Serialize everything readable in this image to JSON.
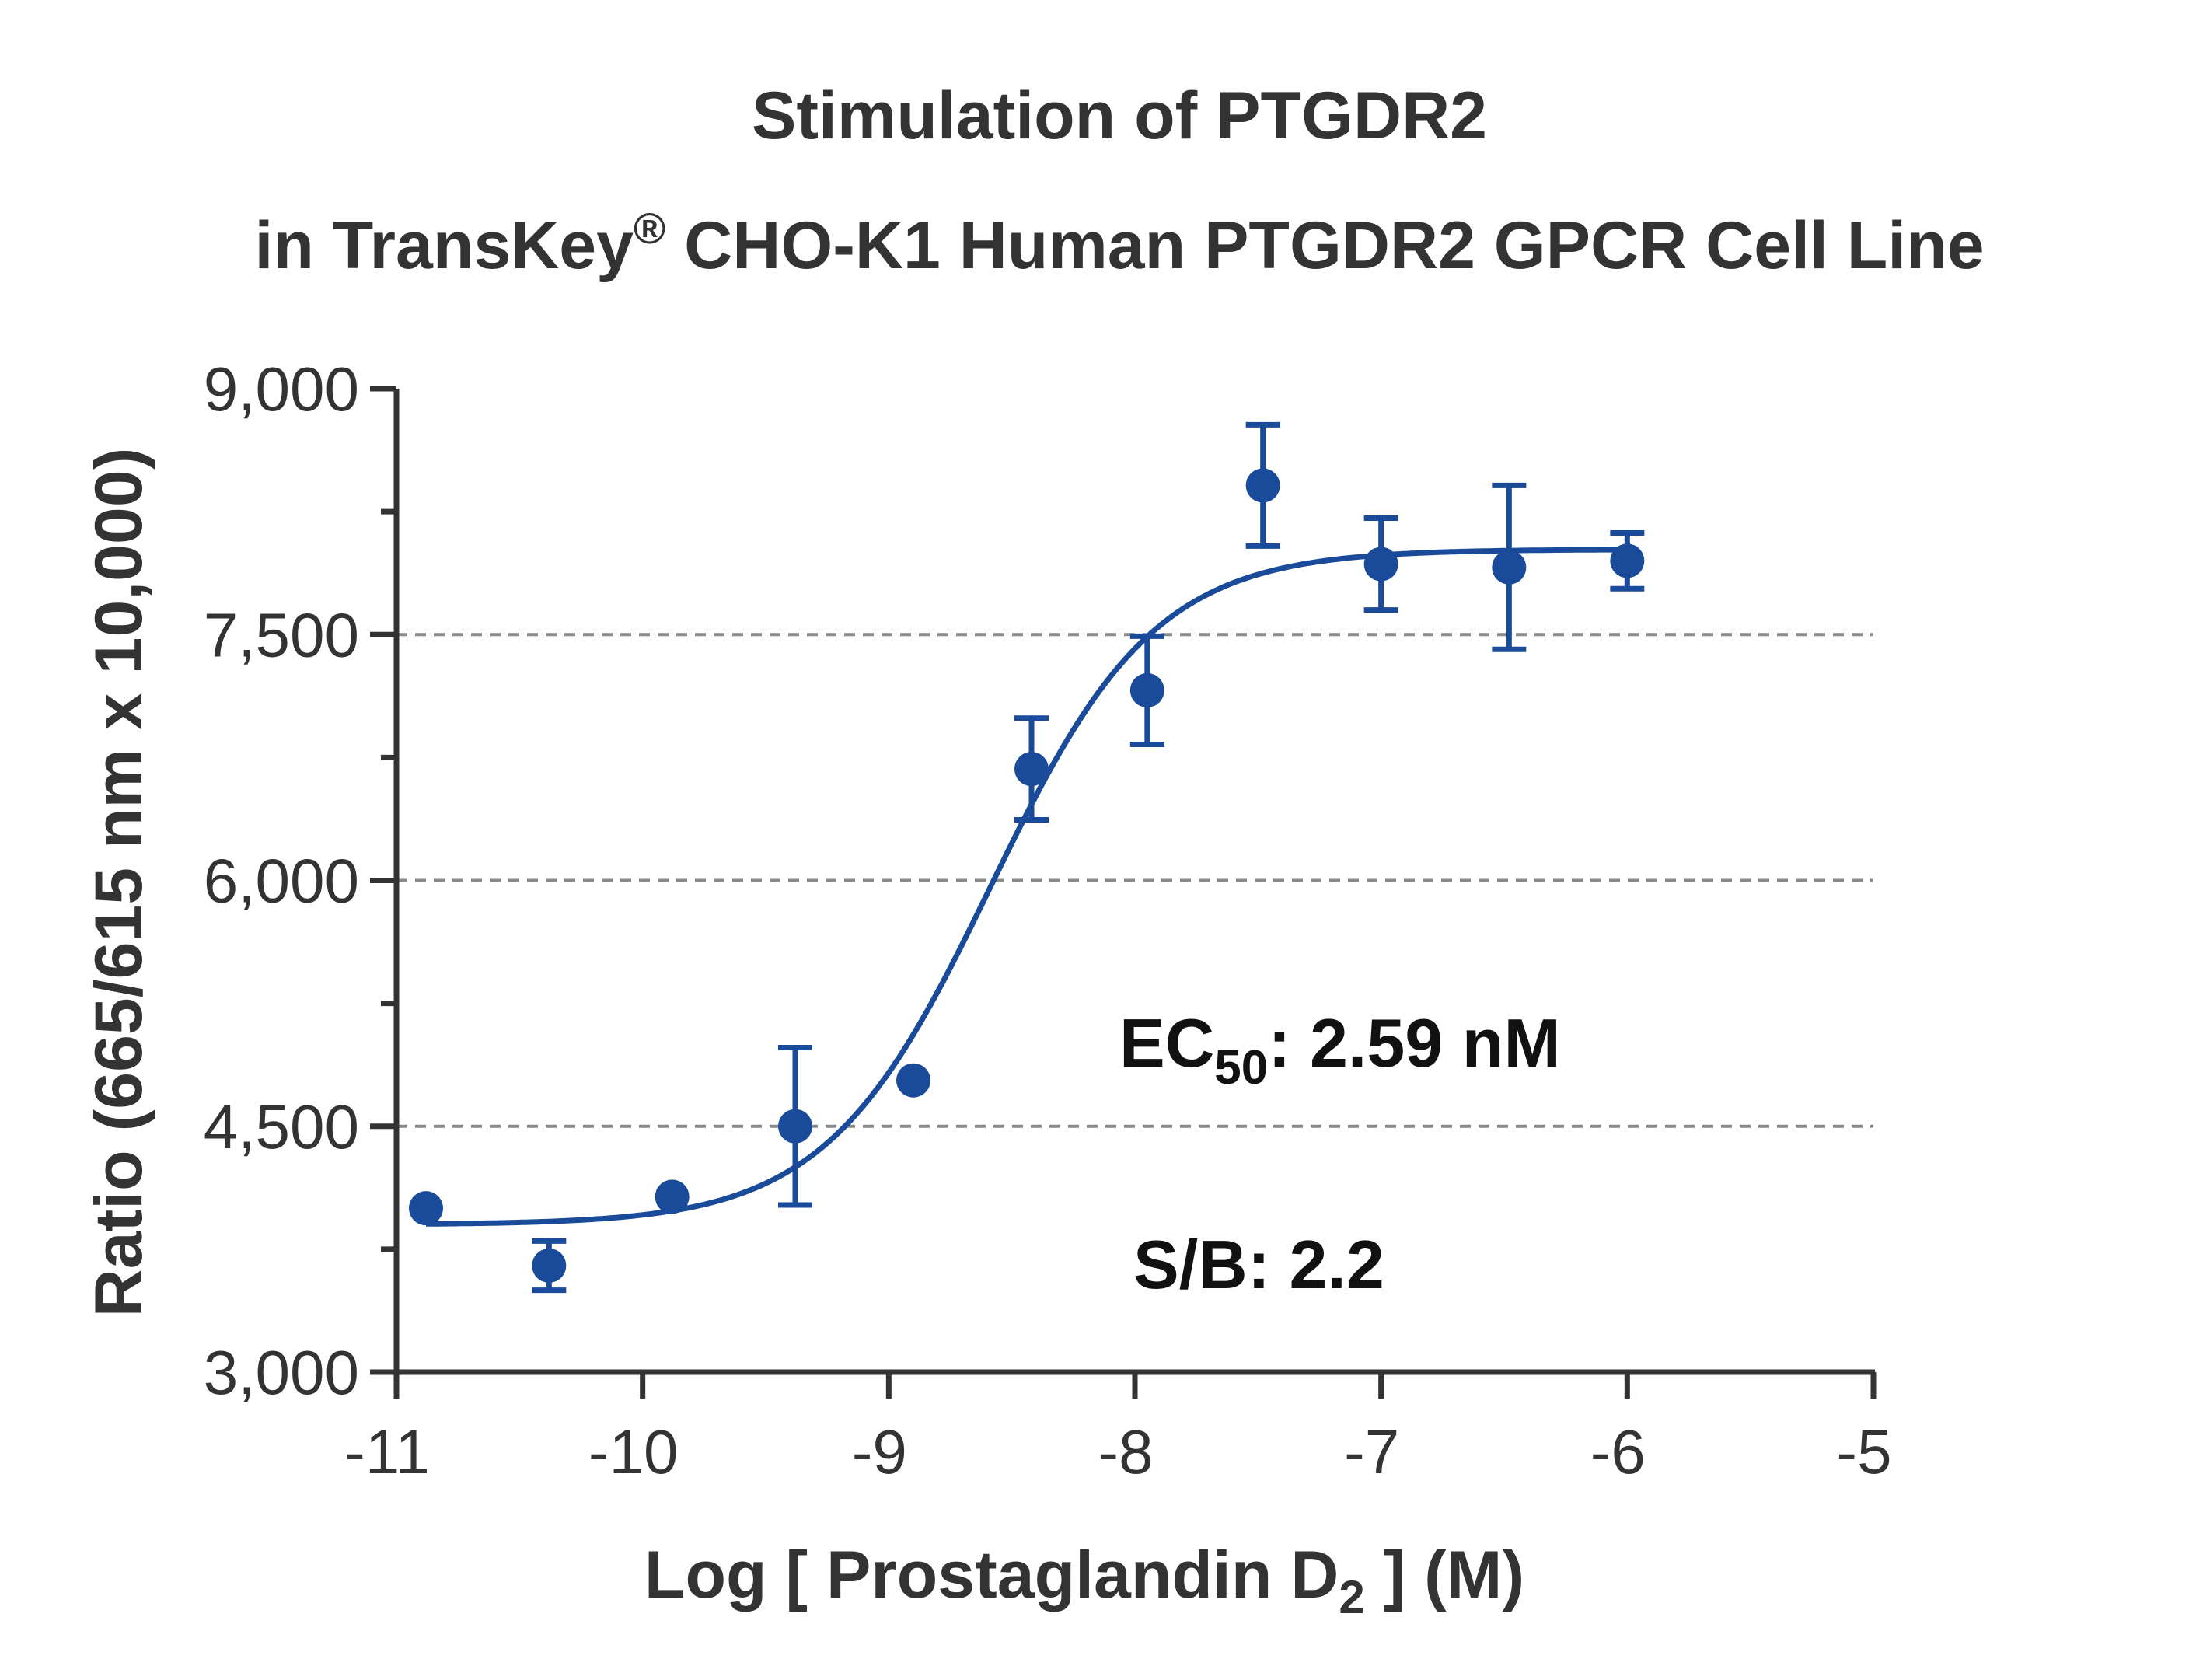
{
  "chart_data": {
    "type": "scatter",
    "title_line1": "Stimulation of  PTGDR2",
    "title_line2_pre": "in TransKey",
    "title_line2_sup": "®",
    "title_line2_post": " CHO-K1 Human PTGDR2 GPCR Cell Line",
    "xlabel_pre": "Log [ Prostaglandin D",
    "xlabel_sub": "2",
    "xlabel_post": " ]  (M)",
    "ylabel": "Ratio (665/615 nm x 10,000)",
    "xlim": [
      -11,
      -5
    ],
    "ylim": [
      3000,
      9000
    ],
    "x_ticks": [
      -11,
      -10,
      -9,
      -8,
      -7,
      -6,
      -5
    ],
    "x_tick_labels": [
      "-11",
      "-10",
      "-9",
      "-8",
      "-7",
      "-6",
      "-5"
    ],
    "y_ticks": [
      3000,
      4500,
      6000,
      7500,
      9000
    ],
    "y_tick_labels": [
      "3,000",
      "4,500",
      "6,000",
      "7,500",
      "9,000"
    ],
    "grid": "horizontal dashed at 4500, 6000, 7500",
    "color": "#1a4a9a",
    "series": [
      {
        "x": [
          -10.88,
          -10.38,
          -9.88,
          -9.38,
          -8.9,
          -8.42,
          -7.95,
          -7.48,
          -7.0,
          -6.48,
          -6.0
        ],
        "y": [
          4000,
          3650,
          4070,
          4500,
          4780,
          6680,
          7160,
          8410,
          7930,
          7910,
          7950
        ],
        "error": [
          0,
          150,
          0,
          480,
          0,
          310,
          330,
          370,
          280,
          500,
          170
        ]
      }
    ],
    "fit": {
      "type": "4PL",
      "bottom": 3900,
      "top": 8020,
      "logEC50": -8.587,
      "hill": 1.3
    },
    "annotations": {
      "ec50_pre": "EC",
      "ec50_sub": "50",
      "ec50_post": ": 2.59 nM",
      "sb": "S/B: 2.2"
    }
  }
}
